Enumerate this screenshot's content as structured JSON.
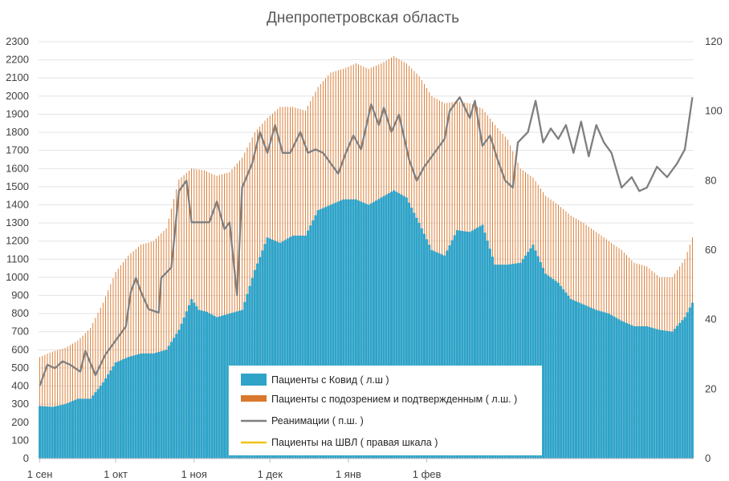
{
  "chart_data": {
    "type": "bar",
    "title": "Днепропетровская область",
    "x_tick_labels": [
      "1 сен",
      "1 окт",
      "1 ноя",
      "1 дек",
      "1 янв",
      "1 фев"
    ],
    "y_left_ticks": [
      "0",
      "100",
      "200",
      "300",
      "400",
      "500",
      "600",
      "700",
      "800",
      "900",
      "1000",
      "1100",
      "1200",
      "1300",
      "1400",
      "1500",
      "1600",
      "1700",
      "1800",
      "1900",
      "2000",
      "2100",
      "2200",
      "2300"
    ],
    "y_right_ticks": [
      "0",
      "20",
      "40",
      "60",
      "80",
      "100",
      "120"
    ],
    "ylim_left": [
      0,
      2300
    ],
    "ylim_right": [
      0,
      120
    ],
    "legend_position": "bottom-center",
    "series": [
      {
        "name": "Пациенты с Ковид ( л.ш )",
        "axis": "left",
        "color": "#2fa3c8",
        "keypoints": [
          [
            0,
            290
          ],
          [
            5,
            285
          ],
          [
            10,
            300
          ],
          [
            15,
            330
          ],
          [
            20,
            330
          ],
          [
            25,
            420
          ],
          [
            30,
            530
          ],
          [
            35,
            560
          ],
          [
            40,
            580
          ],
          [
            45,
            580
          ],
          [
            50,
            600
          ],
          [
            55,
            710
          ],
          [
            60,
            880
          ],
          [
            63,
            820
          ],
          [
            66,
            810
          ],
          [
            70,
            780
          ],
          [
            75,
            800
          ],
          [
            80,
            820
          ],
          [
            85,
            1040
          ],
          [
            90,
            1220
          ],
          [
            95,
            1190
          ],
          [
            100,
            1230
          ],
          [
            105,
            1230
          ],
          [
            110,
            1370
          ],
          [
            115,
            1400
          ],
          [
            120,
            1430
          ],
          [
            125,
            1430
          ],
          [
            130,
            1400
          ],
          [
            135,
            1440
          ],
          [
            140,
            1480
          ],
          [
            145,
            1440
          ],
          [
            150,
            1300
          ],
          [
            155,
            1150
          ],
          [
            160,
            1120
          ],
          [
            165,
            1260
          ],
          [
            170,
            1250
          ],
          [
            175,
            1290
          ],
          [
            180,
            1070
          ],
          [
            185,
            1070
          ],
          [
            190,
            1080
          ],
          [
            195,
            1180
          ],
          [
            200,
            1020
          ],
          [
            205,
            970
          ],
          [
            210,
            880
          ],
          [
            215,
            850
          ],
          [
            220,
            820
          ],
          [
            225,
            800
          ],
          [
            230,
            760
          ],
          [
            235,
            730
          ],
          [
            240,
            730
          ],
          [
            245,
            710
          ],
          [
            250,
            700
          ],
          [
            255,
            780
          ],
          [
            258,
            860
          ]
        ]
      },
      {
        "name": "Пациенты с подозрением и подтвержденным ( л.ш. )",
        "axis": "left",
        "color": "#d9782d",
        "keypoints": [
          [
            0,
            560
          ],
          [
            5,
            590
          ],
          [
            10,
            610
          ],
          [
            15,
            650
          ],
          [
            20,
            720
          ],
          [
            25,
            860
          ],
          [
            30,
            1030
          ],
          [
            35,
            1120
          ],
          [
            40,
            1180
          ],
          [
            45,
            1200
          ],
          [
            50,
            1270
          ],
          [
            55,
            1540
          ],
          [
            60,
            1600
          ],
          [
            65,
            1590
          ],
          [
            70,
            1560
          ],
          [
            75,
            1580
          ],
          [
            80,
            1660
          ],
          [
            85,
            1800
          ],
          [
            90,
            1880
          ],
          [
            95,
            1940
          ],
          [
            100,
            1940
          ],
          [
            105,
            1920
          ],
          [
            110,
            2050
          ],
          [
            115,
            2130
          ],
          [
            120,
            2150
          ],
          [
            125,
            2180
          ],
          [
            130,
            2150
          ],
          [
            135,
            2180
          ],
          [
            140,
            2220
          ],
          [
            145,
            2180
          ],
          [
            150,
            2110
          ],
          [
            155,
            2000
          ],
          [
            160,
            1960
          ],
          [
            165,
            1970
          ],
          [
            170,
            1960
          ],
          [
            175,
            1930
          ],
          [
            180,
            1840
          ],
          [
            185,
            1760
          ],
          [
            190,
            1600
          ],
          [
            195,
            1550
          ],
          [
            200,
            1450
          ],
          [
            205,
            1400
          ],
          [
            210,
            1340
          ],
          [
            215,
            1300
          ],
          [
            220,
            1250
          ],
          [
            225,
            1200
          ],
          [
            230,
            1150
          ],
          [
            235,
            1080
          ],
          [
            240,
            1060
          ],
          [
            245,
            1000
          ],
          [
            250,
            1000
          ],
          [
            255,
            1100
          ],
          [
            258,
            1220
          ]
        ]
      },
      {
        "name": "Реанимации ( п.ш. )",
        "axis": "right",
        "color": "#7f7f7f",
        "keypoints": [
          [
            0,
            21
          ],
          [
            3,
            27
          ],
          [
            6,
            26
          ],
          [
            9,
            28
          ],
          [
            12,
            27
          ],
          [
            16,
            25
          ],
          [
            18,
            31
          ],
          [
            22,
            24
          ],
          [
            26,
            30
          ],
          [
            30,
            34
          ],
          [
            34,
            38
          ],
          [
            36,
            48
          ],
          [
            38,
            52
          ],
          [
            40,
            48
          ],
          [
            43,
            43
          ],
          [
            47,
            42
          ],
          [
            48,
            52
          ],
          [
            52,
            55
          ],
          [
            55,
            77
          ],
          [
            58,
            80
          ],
          [
            60,
            68
          ],
          [
            64,
            68
          ],
          [
            67,
            68
          ],
          [
            70,
            74
          ],
          [
            73,
            66
          ],
          [
            75,
            68
          ],
          [
            78,
            47
          ],
          [
            80,
            78
          ],
          [
            84,
            85
          ],
          [
            87,
            94
          ],
          [
            90,
            88
          ],
          [
            93,
            96
          ],
          [
            96,
            88
          ],
          [
            99,
            88
          ],
          [
            103,
            94
          ],
          [
            106,
            88
          ],
          [
            109,
            89
          ],
          [
            112,
            88
          ],
          [
            115,
            85
          ],
          [
            118,
            82
          ],
          [
            121,
            88
          ],
          [
            124,
            93
          ],
          [
            127,
            89
          ],
          [
            131,
            102
          ],
          [
            134,
            96
          ],
          [
            136,
            101
          ],
          [
            139,
            94
          ],
          [
            142,
            99
          ],
          [
            146,
            86
          ],
          [
            149,
            80
          ],
          [
            152,
            84
          ],
          [
            156,
            88
          ],
          [
            160,
            92
          ],
          [
            162,
            100
          ],
          [
            166,
            104
          ],
          [
            170,
            98
          ],
          [
            172,
            103
          ],
          [
            175,
            90
          ],
          [
            178,
            93
          ],
          [
            181,
            86
          ],
          [
            184,
            80
          ],
          [
            187,
            78
          ],
          [
            189,
            91
          ],
          [
            193,
            94
          ],
          [
            196,
            103
          ],
          [
            199,
            91
          ],
          [
            202,
            95
          ],
          [
            205,
            92
          ],
          [
            208,
            96
          ],
          [
            211,
            88
          ],
          [
            214,
            97
          ],
          [
            217,
            87
          ],
          [
            220,
            96
          ],
          [
            223,
            91
          ],
          [
            226,
            88
          ],
          [
            230,
            78
          ],
          [
            234,
            81
          ],
          [
            237,
            77
          ],
          [
            240,
            78
          ],
          [
            244,
            84
          ],
          [
            248,
            81
          ],
          [
            252,
            85
          ],
          [
            255,
            89
          ],
          [
            258,
            104
          ]
        ]
      },
      {
        "name": "Пациенты на ШВЛ ( правая шкала )",
        "axis": "right",
        "color": "#f2c314",
        "keypoints": []
      }
    ]
  }
}
